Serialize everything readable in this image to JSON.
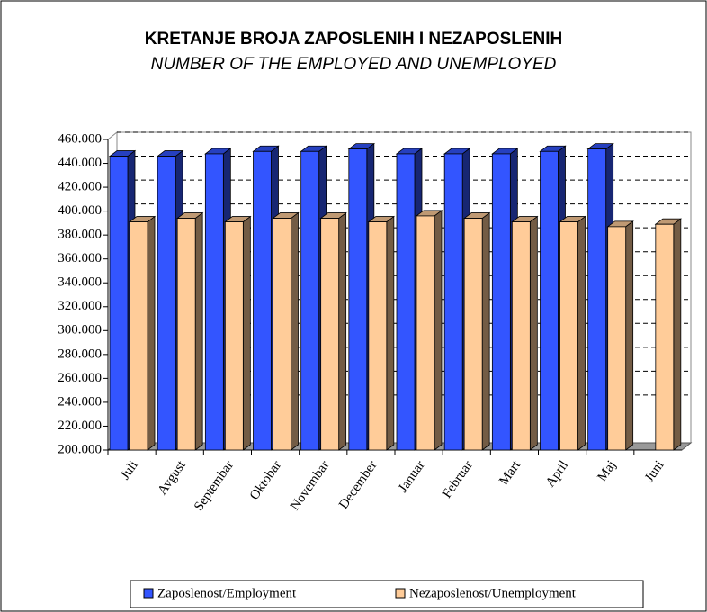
{
  "chart_data": {
    "type": "bar3d",
    "title": "KRETANJE BROJA ZAPOSLENIH I NEZAPOSLENIH",
    "subtitle": "NUMBER OF THE EMPLOYED AND UNEMPLOYED",
    "categories": [
      "Juli",
      "Avgust",
      "Septembar",
      "Oktobar",
      "Novembar",
      "December",
      "Januar",
      "Februar",
      "Mart",
      "April",
      "Maj",
      "Juni"
    ],
    "series": [
      {
        "name": "Zaposlenost/Employment",
        "color": "#3355ff",
        "values": [
          446000,
          446000,
          448000,
          450000,
          450000,
          452000,
          448000,
          448000,
          448000,
          450000,
          452000,
          null
        ]
      },
      {
        "name": "Nezaposlenost/Unemployment",
        "color": "#ffcc99",
        "values": [
          391000,
          394000,
          391000,
          394000,
          394000,
          391000,
          396000,
          394000,
          391000,
          391000,
          387000,
          389000
        ]
      }
    ],
    "ylim": [
      200000,
      460000
    ],
    "yticks": [
      {
        "value": 200000,
        "label": "200.000"
      },
      {
        "value": 220000,
        "label": "220.000"
      },
      {
        "value": 240000,
        "label": "240.000"
      },
      {
        "value": 260000,
        "label": "260.000"
      },
      {
        "value": 280000,
        "label": "280.000"
      },
      {
        "value": 300000,
        "label": "300.000"
      },
      {
        "value": 320000,
        "label": "320.000"
      },
      {
        "value": 340000,
        "label": "340.000"
      },
      {
        "value": 360000,
        "label": "360.000"
      },
      {
        "value": 380000,
        "label": "380.000"
      },
      {
        "value": 400000,
        "label": "400.000"
      },
      {
        "value": 420000,
        "label": "420.000"
      },
      {
        "value": 440000,
        "label": "440.000"
      },
      {
        "value": 460000,
        "label": "460.000"
      }
    ],
    "grid": true,
    "legend": "bottom"
  }
}
